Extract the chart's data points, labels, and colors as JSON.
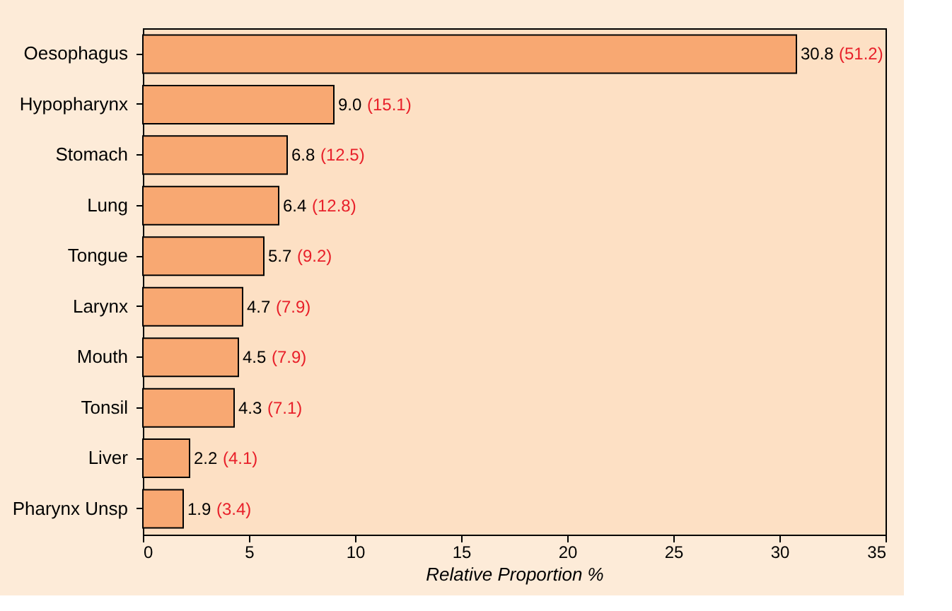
{
  "chart_data": {
    "type": "bar",
    "orientation": "horizontal",
    "xlabel": "Relative Proportion %",
    "categories": [
      "Oesophagus",
      "Hypopharynx",
      "Stomach",
      "Lung",
      "Tongue",
      "Larynx",
      "Mouth",
      "Tonsil",
      "Liver",
      "Pharynx Unsp"
    ],
    "values": [
      30.8,
      9.0,
      6.8,
      6.4,
      5.7,
      4.7,
      4.5,
      4.3,
      2.2,
      1.9
    ],
    "value_labels": [
      "30.8 (51.2)",
      "9.0 (15.1)",
      "6.8 (12.5)",
      "6.4 (12.8)",
      "5.7 (9.2)",
      "4.7 (7.9)",
      "4.5 (7.9)",
      "4.3 (7.1)",
      "2.2 (4.1)",
      "1.9 (3.4)"
    ],
    "color": "#f8a872",
    "xlim": [
      0,
      35
    ],
    "xticks": [
      0,
      5,
      10,
      15,
      20,
      25,
      30,
      35
    ],
    "grid": false
  }
}
